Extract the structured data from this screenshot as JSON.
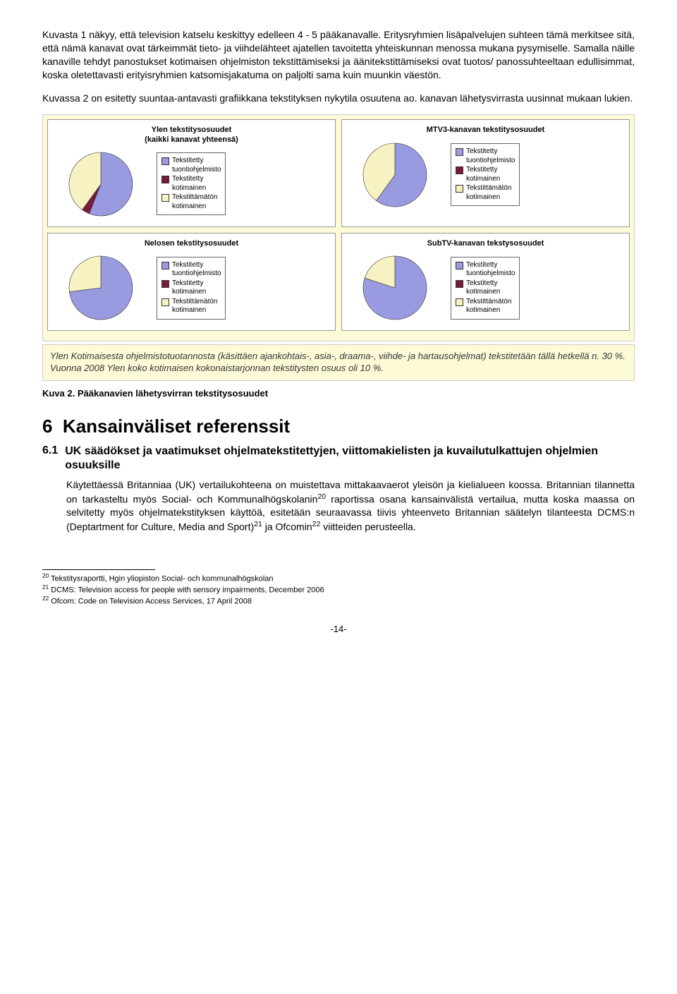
{
  "para1": "Kuvasta 1 näkyy, että television katselu keskittyy edelleen 4 - 5 pääkanavalle. Eritysryhmien lisäpalvelujen suhteen tämä merkitsee sitä, että nämä kanavat ovat tärkeimmät tieto- ja viihdelähteet ajatellen tavoitetta yhteiskunnan menossa mukana pysymiselle. Samalla näille kanaville tehdyt panostukset kotimaisen ohjelmiston tekstittämiseksi ja äänitekstittämiseksi ovat tuotos/ panossuhteeltaan edullisimmat, koska oletettavasti erityisryhmien katsomisjakatuma on paljolti sama kuin muunkin väestön.",
  "para2": "Kuvassa 2 on esitetty suuntaa-antavasti grafiikkana tekstityksen nykytila osuutena ao. kanavan lähetysvirrasta uusinnat mukaan lukien.",
  "colors": {
    "c1": "#9a9ae0",
    "c2": "#7a1a3a",
    "c3": "#f7f2c2"
  },
  "legend_labels": {
    "l1a": "Tekstitetty",
    "l1b": "tuontiohjelmisto",
    "l2a": "Tekstitetty",
    "l2b": "kotimainen",
    "l3a": "Tekstittämätön",
    "l3b": "kotimainen"
  },
  "panels": {
    "ylen": {
      "title": "Ylen tekstitysosuudet\n(kaikki kanavat yhteensä)",
      "slices": [
        56,
        4,
        40
      ]
    },
    "mtv3": {
      "title": "MTV3-kanavan tekstitysosuudet",
      "slices": [
        60,
        0,
        40
      ]
    },
    "nelosen": {
      "title": "Nelosen tekstitysosuudet",
      "slices": [
        73,
        0,
        27
      ]
    },
    "subtv": {
      "title": "SubTV-kanavan tekstysosuudet",
      "slices": [
        80,
        0,
        20
      ]
    }
  },
  "note": "Ylen Kotimaisesta ohjelmistotuotannosta (käsittäen ajankohtais-, asia-, draama-, viihde- ja hartausohjelmat) tekstitetään tällä hetkellä n. 30 %.  Vuonna 2008 Ylen koko kotimaisen kokonaistarjonnan tekstitysten osuus oli 10 %.",
  "caption": "Kuva 2. Pääkanavien lähetysvirran tekstitysosuudet",
  "sec_num": "6",
  "sec_title": "Kansainväliset referenssit",
  "subsec_num": "6.1",
  "subsec_title": "UK säädökset ja vaatimukset ohjelmatekstitettyjen, viittomakielisten ja kuvailutulkattujen ohjelmien osuuksille",
  "para3_a": "Käytettäessä Britanniaa (UK) vertailukohteena on muistettava mittakaavaerot yleisön ja kielialueen koossa. Britannian tilannetta on tarkasteltu myös Social- och Kommunalhögskolanin",
  "para3_b": " raportissa osana kansainvälistä vertailua, mutta koska maassa on selvitetty myös ohjelmatekstityksen käyttöä, esitetään seuraavassa tiivis yhteenveto Britannian säätelyn tilanteesta DCMS:n (Deptartment for Culture, Media and Sport)",
  "para3_c": " ja Ofcomin",
  "para3_d": " viitteiden perusteella.",
  "fn20_num": "20",
  "fn20": "Tekstitysraportti, Hgin yliopiston Social- och kommunalhögskolan",
  "fn21_num": "21",
  "fn21": "DCMS: Television access for people with sensory impairments, December 2006",
  "fn22_num": "22",
  "fn22": "Ofcom: Code on Television Access Services, 17 April 2008",
  "pagenum": "-14-"
}
